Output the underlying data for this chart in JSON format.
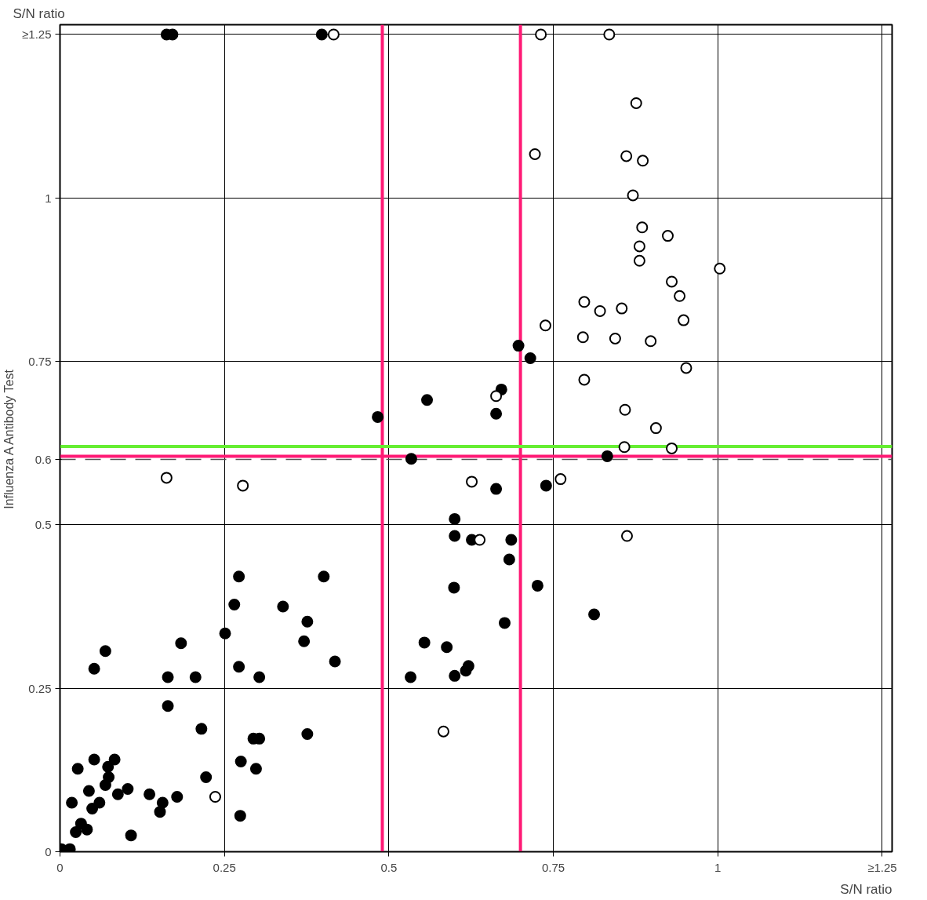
{
  "chart_data": {
    "type": "scatter",
    "ylabel": "Influenza A Antibody Test",
    "annotations": [
      "S/N ratio",
      "S/N ratio"
    ],
    "xlim": [
      0,
      1.265
    ],
    "ylim": [
      0,
      1.265
    ],
    "xticks": [
      0,
      0.25,
      0.5,
      0.75,
      1,
      {
        "value": 1.25,
        "label": "≥1.25"
      }
    ],
    "yticks": [
      0,
      0.25,
      0.5,
      0.6,
      0.75,
      1,
      {
        "value": 1.25,
        "label": "≥1.25"
      }
    ],
    "grid": true,
    "marker": "circle",
    "ref_lines": [
      {
        "axis": "y",
        "value": 0.6,
        "color": "#555555",
        "line_style": "dashed"
      },
      {
        "axis": "x",
        "value": 0.49,
        "color": "#ff1a75"
      },
      {
        "axis": "x",
        "value": 0.7,
        "color": "#ff1a75"
      },
      {
        "axis": "y",
        "value": 0.605,
        "color": "#ff1a75"
      },
      {
        "axis": "y",
        "value": 0.62,
        "color": "#66ee33"
      }
    ],
    "series": [
      {
        "color": "#000000",
        "x": [
          0.162,
          0.171,
          0.398,
          0.483,
          0.558,
          0.534,
          0.697,
          0.715,
          0.671,
          0.663,
          0.832,
          0.739,
          0.663,
          0.6,
          0.6,
          0.626,
          0.686,
          0.683,
          0.599,
          0.726,
          0.812,
          0.676,
          0.554,
          0.588,
          0.621,
          0.617,
          0.6,
          0.533,
          0.272,
          0.401,
          0.265,
          0.339,
          0.376,
          0.371,
          0.251,
          0.418,
          0.184,
          0.069,
          0.052,
          0.272,
          0.164,
          0.206,
          0.303,
          0.164,
          0.215,
          0.294,
          0.303,
          0.376,
          0.275,
          0.298,
          0.222,
          0.274,
          0.152,
          0.178,
          0.136,
          0.156,
          0.108,
          0.027,
          0.052,
          0.073,
          0.083,
          0.044,
          0.06,
          0.069,
          0.088,
          0.103,
          0.018,
          0.032,
          0.024,
          0.041,
          0.015,
          0.002,
          0.049,
          0.074
        ],
        "values": [
          1.25,
          1.25,
          1.25,
          0.665,
          0.691,
          0.601,
          0.774,
          0.755,
          0.707,
          0.67,
          0.605,
          0.56,
          0.555,
          0.509,
          0.483,
          0.477,
          0.477,
          0.447,
          0.404,
          0.407,
          0.363,
          0.35,
          0.32,
          0.313,
          0.284,
          0.277,
          0.269,
          0.267,
          0.421,
          0.421,
          0.378,
          0.375,
          0.352,
          0.322,
          0.334,
          0.291,
          0.319,
          0.307,
          0.28,
          0.283,
          0.267,
          0.267,
          0.267,
          0.223,
          0.188,
          0.173,
          0.173,
          0.18,
          0.138,
          0.127,
          0.114,
          0.055,
          0.061,
          0.084,
          0.088,
          0.075,
          0.025,
          0.127,
          0.141,
          0.13,
          0.141,
          0.093,
          0.075,
          0.102,
          0.088,
          0.096,
          0.075,
          0.043,
          0.03,
          0.034,
          0.004,
          0.004,
          0.066,
          0.114
        ]
      },
      {
        "color": "#ffffff",
        "x": [
          0.416,
          0.731,
          0.835,
          0.876,
          0.722,
          0.861,
          0.886,
          0.871,
          0.885,
          0.924,
          0.881,
          0.881,
          1.003,
          0.93,
          0.942,
          0.797,
          0.821,
          0.854,
          0.738,
          0.948,
          0.795,
          0.844,
          0.898,
          0.952,
          0.797,
          0.663,
          0.859,
          0.906,
          0.858,
          0.93,
          0.761,
          0.626,
          0.162,
          0.278,
          0.638,
          0.862,
          0.583,
          0.236
        ],
        "values": [
          1.25,
          1.25,
          1.25,
          1.145,
          1.067,
          1.064,
          1.057,
          1.004,
          0.955,
          0.942,
          0.926,
          0.904,
          0.892,
          0.872,
          0.85,
          0.841,
          0.827,
          0.831,
          0.805,
          0.813,
          0.787,
          0.785,
          0.781,
          0.74,
          0.722,
          0.697,
          0.676,
          0.648,
          0.619,
          0.617,
          0.57,
          0.566,
          0.572,
          0.56,
          0.477,
          0.483,
          0.184,
          0.084
        ]
      }
    ]
  }
}
